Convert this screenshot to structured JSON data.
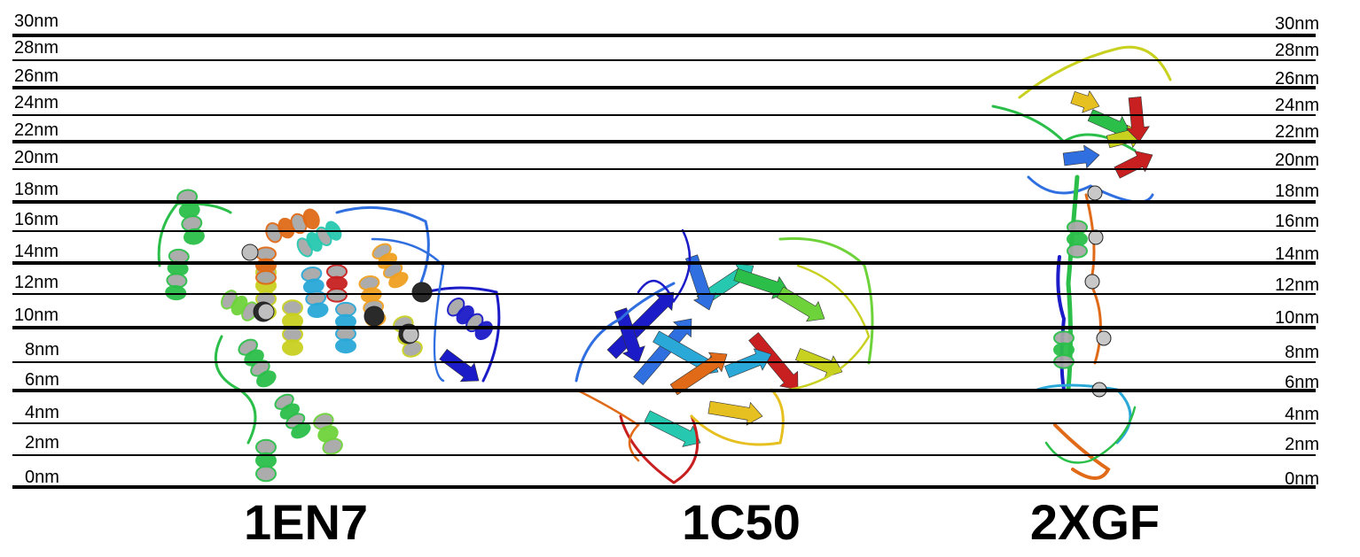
{
  "scale": {
    "unit": "nm",
    "ticks_left": [
      "30nm",
      "28nm",
      "26nm",
      "24nm",
      "22nm",
      "20nm",
      "18nm",
      "16nm",
      "14nm",
      "12nm",
      "10nm",
      "8nm",
      "6nm",
      "4nm",
      "2nm",
      "0nm"
    ],
    "ticks_right": [
      "30nm",
      "28nm",
      "26nm",
      "24nm",
      "22nm",
      "20nm",
      "18nm",
      "16nm",
      "14nm",
      "12nm",
      "10nm",
      "8nm",
      "6nm",
      "4nm",
      "2nm",
      "0nm"
    ]
  },
  "proteins": [
    {
      "id": "1EN7",
      "label": "1EN7"
    },
    {
      "id": "1C50",
      "label": "1C50"
    },
    {
      "id": "2XGF",
      "label": "2XGF"
    }
  ],
  "colors": {
    "line": "#000000",
    "ribbon_palette": [
      "#1b1bc8",
      "#2f6fe0",
      "#2aa8d8",
      "#26c9b0",
      "#2bbf4a",
      "#6ed33a",
      "#c8d020",
      "#e6c020",
      "#f0a020",
      "#e06a18",
      "#c82020",
      "#9a9a9a"
    ]
  }
}
